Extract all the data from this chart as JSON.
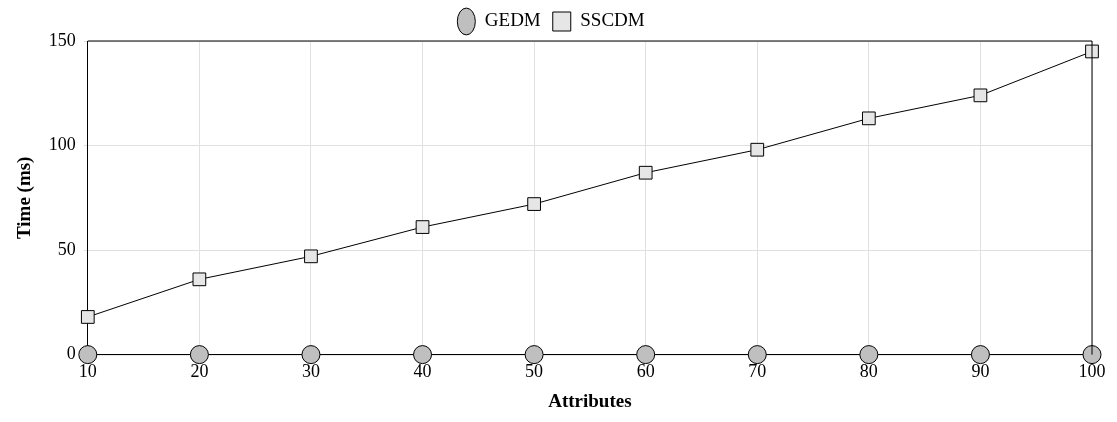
{
  "chart_data": {
    "type": "line",
    "xlabel": "Attributes",
    "ylabel": "Time (ms)",
    "x": [
      10,
      20,
      30,
      40,
      50,
      60,
      70,
      80,
      90,
      100
    ],
    "series": [
      {
        "name": "GEDM",
        "color": "#000000",
        "marker": "circle",
        "values": [
          0,
          0,
          0,
          0,
          0,
          0,
          0,
          0,
          0,
          0
        ]
      },
      {
        "name": "SSCDM",
        "color": "#e6e6e6",
        "marker": "square",
        "values": [
          18,
          36,
          47,
          61,
          72,
          87,
          98,
          113,
          124,
          145
        ]
      }
    ],
    "xlim": [
      10,
      100
    ],
    "xticks": [
      10,
      20,
      30,
      40,
      50,
      60,
      70,
      80,
      90,
      100
    ],
    "ylim": [
      0,
      150
    ],
    "yticks": [
      0,
      50,
      100,
      150
    ],
    "grid": true,
    "legend": "top",
    "line_style": "solid"
  }
}
